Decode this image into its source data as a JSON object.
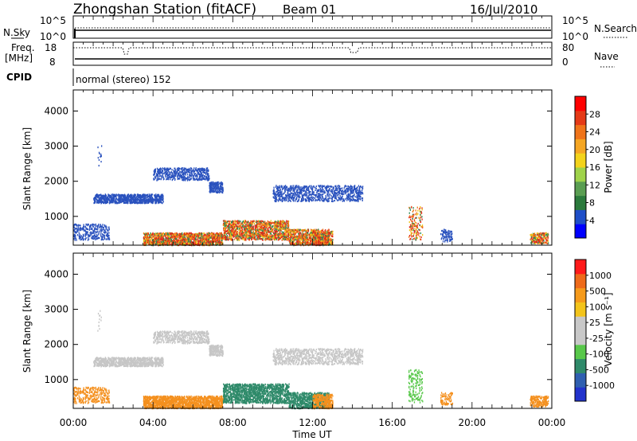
{
  "header": {
    "station_title": "Zhongshan Station (fitACF)",
    "beam": "Beam 01",
    "date": "16/Jul/2010"
  },
  "status_panels": {
    "nsky_label": "N.Sky",
    "nsky_ticks": [
      "10^5",
      "10^0"
    ],
    "nsearch_label": "N.Search",
    "nsearch_ticks": [
      "10^5",
      "10^0"
    ],
    "freq_label_line1": "Freq.",
    "freq_label_line2": "[MHz]",
    "freq_ticks": [
      "18",
      "8"
    ],
    "nave_label": "Nave",
    "nave_ticks": [
      "80",
      "0"
    ],
    "cpid_label": "CPID",
    "cpid_text": "normal (stereo) 152"
  },
  "chart_data": [
    {
      "type": "heatmap",
      "name": "power",
      "ylabel": "Slant Range [km]",
      "xlabel": "",
      "xlim_hours": [
        0,
        24
      ],
      "ylim": [
        180,
        4600
      ],
      "yticks": [
        1000,
        2000,
        3000,
        4000
      ],
      "colorbar_label": "Power [dB]",
      "colorbar_ticks": [
        "28",
        "24",
        "20",
        "16",
        "12",
        "8",
        "4"
      ],
      "colorbar_colors": [
        "#0000ff",
        "#1f4fc8",
        "#2b7a3c",
        "#5a9e52",
        "#9fd34a",
        "#f3d31b",
        "#f5a623",
        "#f0741a",
        "#e53a17",
        "#ff0000"
      ]
    },
    {
      "type": "heatmap",
      "name": "velocity",
      "ylabel": "Slant Range [km]",
      "xlabel": "Time UT",
      "xlim_hours": [
        0,
        24
      ],
      "ylim": [
        180,
        4600
      ],
      "yticks": [
        1000,
        2000,
        3000,
        4000
      ],
      "xticks": [
        "00:00",
        "04:00",
        "08:00",
        "12:00",
        "16:00",
        "20:00",
        "00:00"
      ],
      "colorbar_label": "Velocity [m s⁻¹]",
      "colorbar_ticks": [
        "1000",
        "500",
        "100",
        "25",
        "-25",
        "-100",
        "-500",
        "-1000"
      ],
      "colorbar_colors": [
        "#2233cc",
        "#2f5fb0",
        "#2f8a6a",
        "#58c84a",
        "#c8c8c8",
        "#c8c8c8",
        "#f3c41b",
        "#f59a1b",
        "#ee6a1a",
        "#ff1a1a"
      ]
    }
  ],
  "palette": {
    "power_blue": "#2a52be",
    "power_green": "#2e8b57",
    "power_yellow": "#f0c419",
    "power_orange": "#f07a1a",
    "power_red": "#e02a1a",
    "vel_grey": "#c6c6c6",
    "vel_orange": "#f4901e",
    "vel_teal": "#2f8a6a",
    "vel_green": "#58c84a"
  }
}
